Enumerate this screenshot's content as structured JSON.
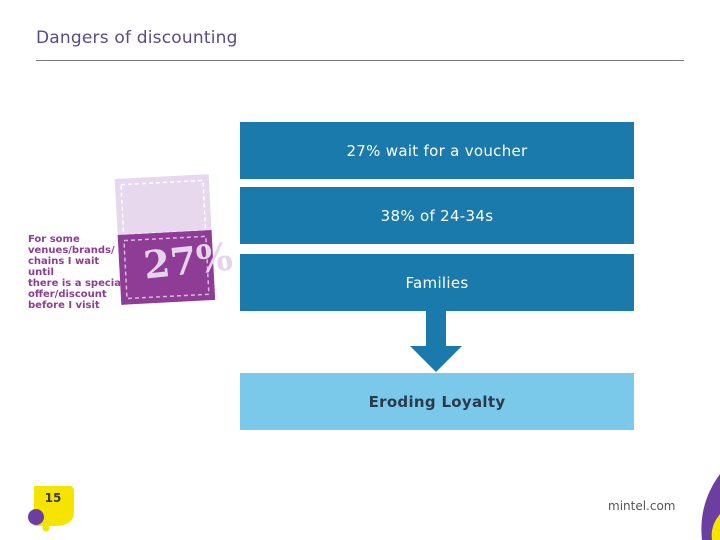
{
  "slide": {
    "title": "Dangers of discounting",
    "page_number": "15",
    "footer_brand": "mintel.com"
  },
  "ticket": {
    "label_lines": [
      "For some",
      "venues/brands/",
      "chains I wait until",
      "there is a special",
      "offer/discount",
      "before I visit"
    ],
    "percent": "27%"
  },
  "flow": {
    "items": [
      "27% wait for a voucher",
      "38% of 24-34s",
      "Families"
    ],
    "result": "Eroding Loyalty"
  },
  "colors": {
    "title": "#5b4a86",
    "box": "#1a7aab",
    "result_box": "#7ac9ea",
    "arrow": "#1a7aab",
    "ticket_light": "#e8d8ee",
    "ticket_dark": "#8f3c96",
    "badge_yellow": "#f5e400",
    "badge_purple": "#6b3fa0",
    "corner_purple": "#6b3fa0"
  }
}
